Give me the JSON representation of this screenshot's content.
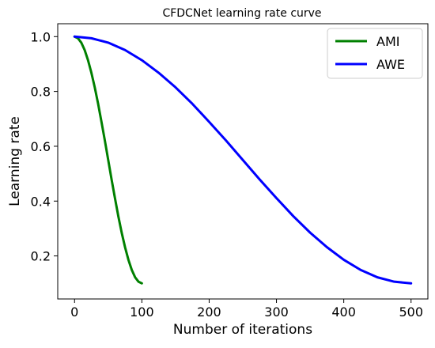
{
  "chart_data": {
    "type": "line",
    "title": "CFDCNet learning rate curve",
    "xlabel": "Number of iterations",
    "ylabel": "Learning rate",
    "xlim": [
      -25,
      525
    ],
    "ylim": [
      0.043,
      1.047
    ],
    "xticks": [
      0,
      100,
      200,
      300,
      400,
      500
    ],
    "yticks": [
      0.2,
      0.4,
      0.6,
      0.8,
      1.0
    ],
    "grid": false,
    "legend": {
      "placement": "top-right"
    },
    "series": [
      {
        "name": "AMI",
        "color": "#008000",
        "x": [
          0,
          5,
          10,
          15,
          20,
          25,
          30,
          35,
          40,
          45,
          50,
          55,
          60,
          65,
          70,
          75,
          80,
          85,
          90,
          95,
          100
        ],
        "y": [
          1.0,
          0.994,
          0.978,
          0.951,
          0.914,
          0.868,
          0.815,
          0.755,
          0.689,
          0.621,
          0.55,
          0.479,
          0.411,
          0.345,
          0.285,
          0.232,
          0.186,
          0.149,
          0.122,
          0.106,
          0.1
        ]
      },
      {
        "name": "AWE",
        "color": "#0000ff",
        "x": [
          0,
          25,
          50,
          75,
          100,
          125,
          150,
          175,
          200,
          225,
          250,
          275,
          300,
          325,
          350,
          375,
          400,
          425,
          450,
          475,
          500
        ],
        "y": [
          1.0,
          0.994,
          0.978,
          0.951,
          0.914,
          0.868,
          0.815,
          0.755,
          0.689,
          0.621,
          0.55,
          0.479,
          0.411,
          0.345,
          0.285,
          0.232,
          0.186,
          0.149,
          0.122,
          0.106,
          0.1
        ]
      }
    ]
  }
}
